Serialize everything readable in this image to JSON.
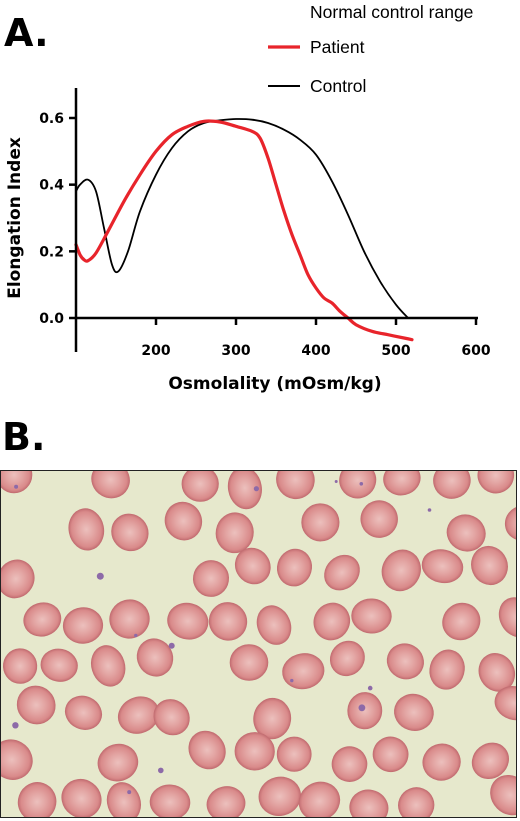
{
  "panels": {
    "a_label": "A.",
    "b_label": "B."
  },
  "chart_data": {
    "type": "line",
    "xlabel": "Osmolality (mOsm/kg)",
    "ylabel": "Elongation Index",
    "xlim": [
      100,
      600
    ],
    "ylim": [
      0.0,
      0.6
    ],
    "x_ticks": [
      200,
      300,
      400,
      500,
      600
    ],
    "y_ticks": [
      0.0,
      0.2,
      0.4,
      0.6
    ],
    "x_tick_labels": [
      "200",
      "300",
      "400",
      "500",
      "600"
    ],
    "y_tick_labels": [
      "0.0",
      "0.2",
      "0.4",
      "0.6"
    ],
    "grid": false,
    "legend_position": "top-right",
    "legend_title": "Normal control range",
    "series": [
      {
        "name": "Patient",
        "color": "#e8242b",
        "points": [
          [
            100,
            0.22
          ],
          [
            105,
            0.19
          ],
          [
            110,
            0.175
          ],
          [
            115,
            0.172
          ],
          [
            125,
            0.195
          ],
          [
            140,
            0.26
          ],
          [
            160,
            0.35
          ],
          [
            180,
            0.43
          ],
          [
            200,
            0.5
          ],
          [
            220,
            0.55
          ],
          [
            240,
            0.575
          ],
          [
            260,
            0.59
          ],
          [
            280,
            0.588
          ],
          [
            300,
            0.575
          ],
          [
            320,
            0.56
          ],
          [
            330,
            0.54
          ],
          [
            340,
            0.48
          ],
          [
            350,
            0.4
          ],
          [
            360,
            0.32
          ],
          [
            370,
            0.25
          ],
          [
            380,
            0.19
          ],
          [
            390,
            0.13
          ],
          [
            400,
            0.09
          ],
          [
            410,
            0.06
          ],
          [
            420,
            0.045
          ],
          [
            430,
            0.02
          ],
          [
            440,
            0.0
          ],
          [
            450,
            -0.02
          ],
          [
            470,
            -0.04
          ],
          [
            490,
            -0.05
          ],
          [
            510,
            -0.06
          ],
          [
            520,
            -0.065
          ]
        ]
      },
      {
        "name": "Control",
        "color": "#000000",
        "points": [
          [
            100,
            0.38
          ],
          [
            105,
            0.4
          ],
          [
            115,
            0.415
          ],
          [
            125,
            0.38
          ],
          [
            135,
            0.27
          ],
          [
            145,
            0.16
          ],
          [
            153,
            0.14
          ],
          [
            165,
            0.2
          ],
          [
            180,
            0.32
          ],
          [
            200,
            0.43
          ],
          [
            220,
            0.51
          ],
          [
            240,
            0.56
          ],
          [
            260,
            0.585
          ],
          [
            280,
            0.593
          ],
          [
            300,
            0.597
          ],
          [
            320,
            0.595
          ],
          [
            340,
            0.585
          ],
          [
            360,
            0.565
          ],
          [
            380,
            0.535
          ],
          [
            400,
            0.49
          ],
          [
            420,
            0.41
          ],
          [
            440,
            0.31
          ],
          [
            460,
            0.2
          ],
          [
            480,
            0.11
          ],
          [
            500,
            0.04
          ],
          [
            515,
            0.0
          ]
        ]
      }
    ]
  },
  "micrograph": {
    "background_color": "#e6e8cc",
    "cell_color": "#d98a8a",
    "cell_rim_color": "#c46f73",
    "platelet_color": "#8d6aa8"
  }
}
